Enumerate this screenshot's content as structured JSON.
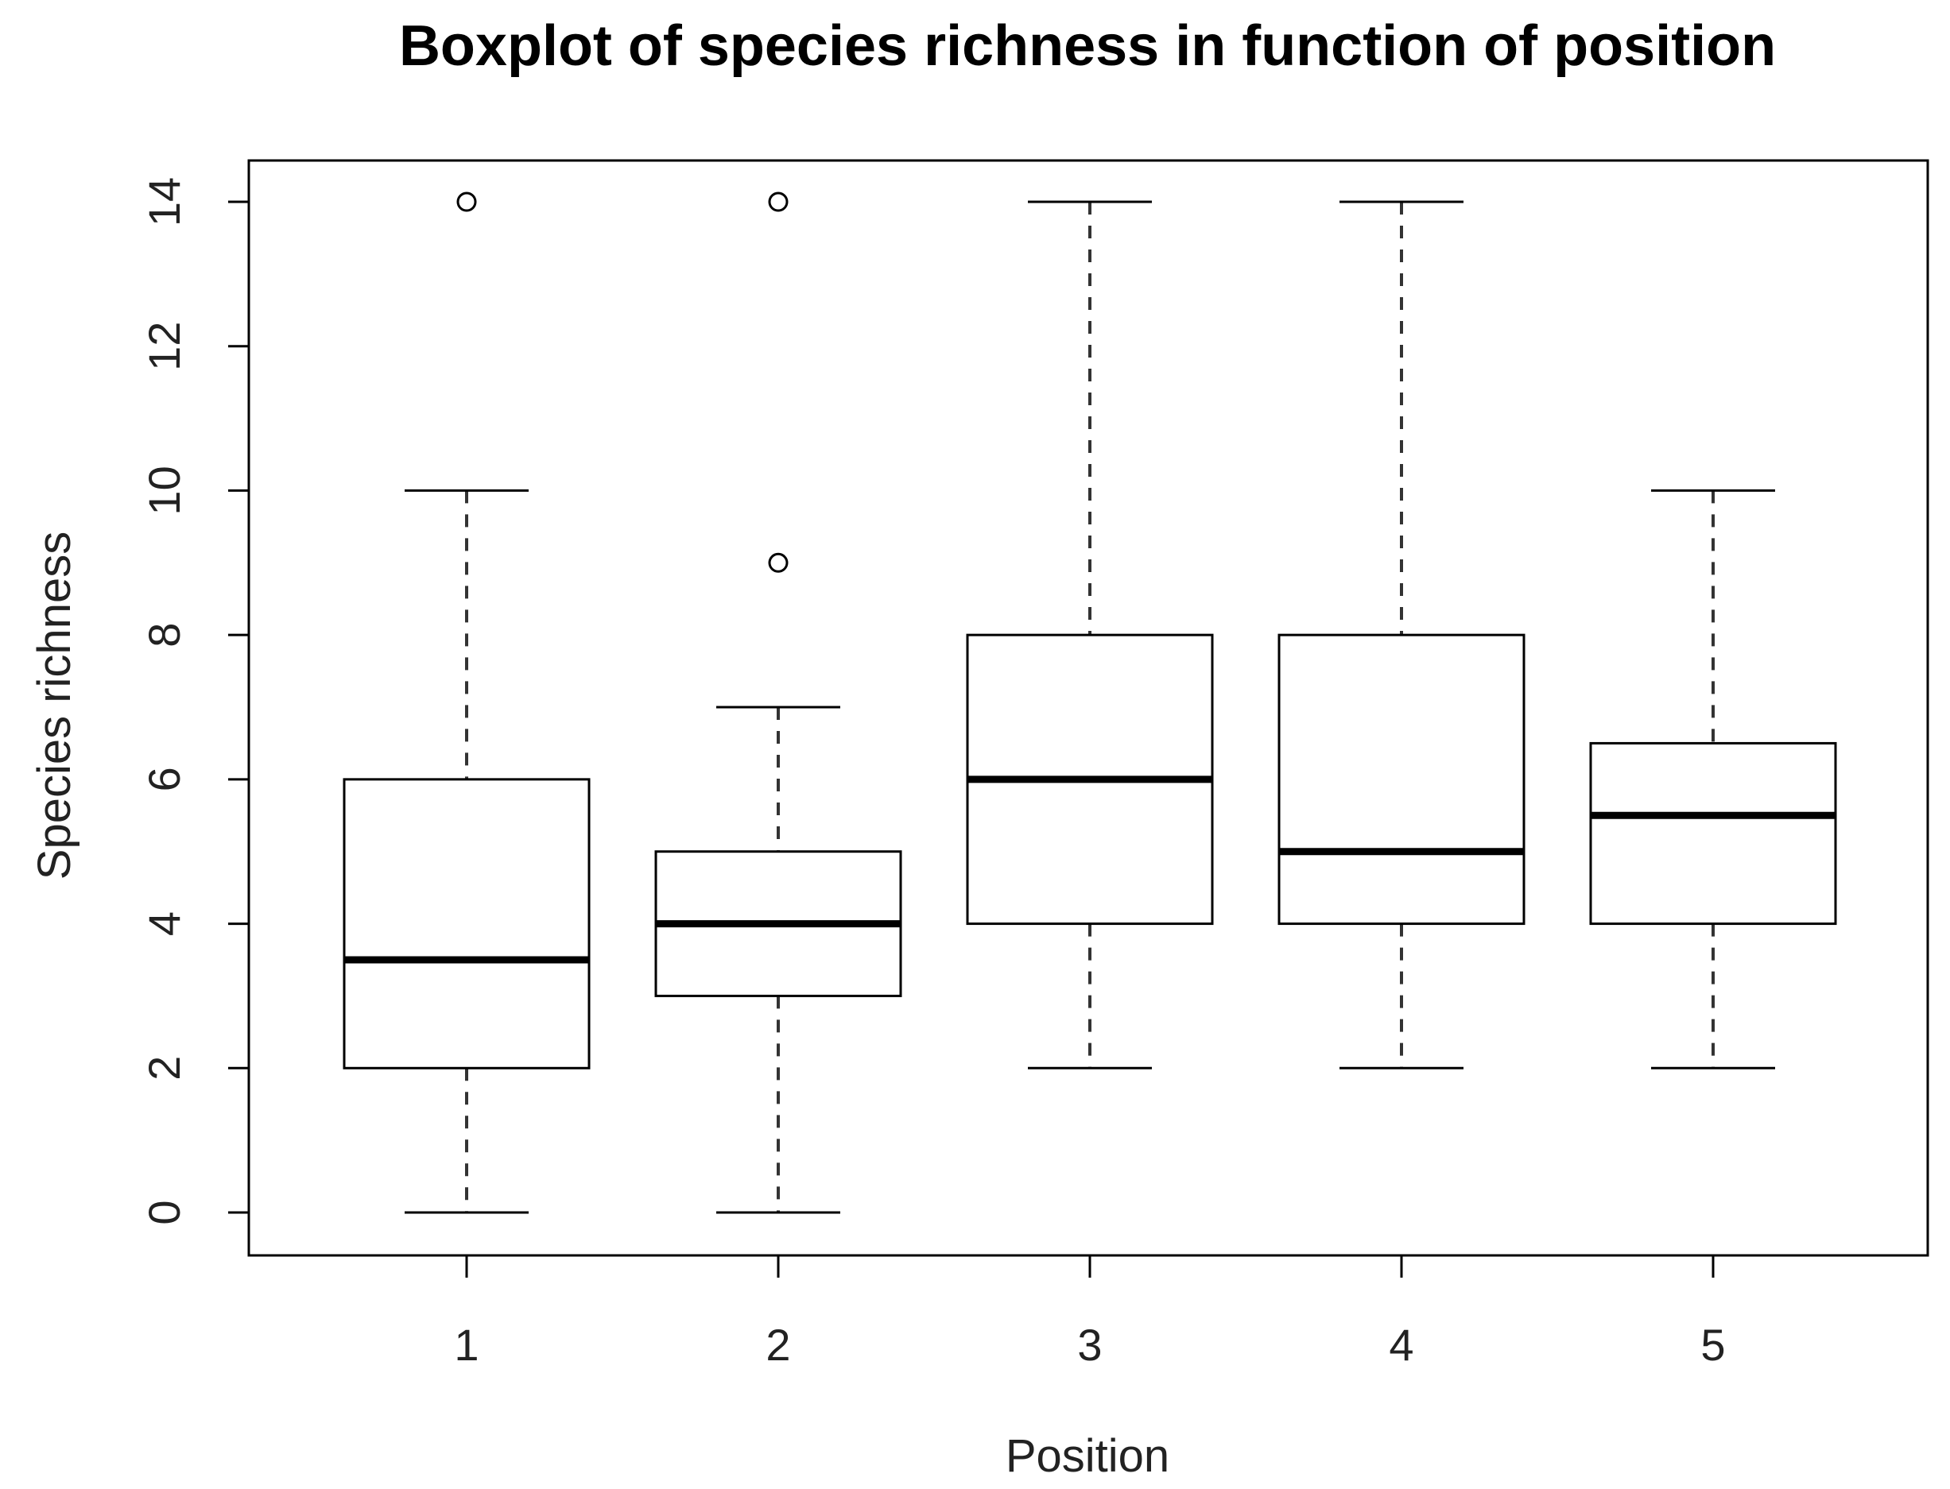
{
  "chart_data": {
    "type": "boxplot",
    "title": "Boxplot of species richness in function of position",
    "xlabel": "Position",
    "ylabel": "Species richness",
    "categories": [
      "1",
      "2",
      "3",
      "4",
      "5"
    ],
    "yticks": [
      "0",
      "2",
      "4",
      "6",
      "8",
      "10",
      "12",
      "14"
    ],
    "ylim": [
      -0.6,
      14.6
    ],
    "boxes": [
      {
        "category": "1",
        "whisker_low": 0,
        "q1": 2,
        "median": 3.5,
        "q3": 6,
        "whisker_high": 10,
        "outliers": [
          14
        ]
      },
      {
        "category": "2",
        "whisker_low": 0,
        "q1": 3,
        "median": 4,
        "q3": 5,
        "whisker_high": 7,
        "outliers": [
          9,
          14
        ]
      },
      {
        "category": "3",
        "whisker_low": 2,
        "q1": 4,
        "median": 6,
        "q3": 8,
        "whisker_high": 14,
        "outliers": []
      },
      {
        "category": "4",
        "whisker_low": 2,
        "q1": 4,
        "median": 5,
        "q3": 8,
        "whisker_high": 14,
        "outliers": []
      },
      {
        "category": "5",
        "whisker_low": 2,
        "q1": 4,
        "median": 5.5,
        "q3": 6.5,
        "whisker_high": 10,
        "outliers": []
      }
    ],
    "grid": false,
    "colors": {
      "box_stroke": "#000000",
      "box_fill": "#ffffff",
      "median": "#000000",
      "whisker": "#333333",
      "text": "#222222"
    }
  }
}
